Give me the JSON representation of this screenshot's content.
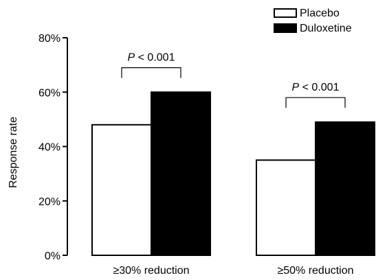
{
  "chart_data": {
    "type": "bar",
    "title": "",
    "xlabel": "",
    "ylabel": "Response rate",
    "categories": [
      "≥30% reduction",
      "≥50% reduction"
    ],
    "series": [
      {
        "name": "Placebo",
        "values": [
          48,
          35
        ],
        "fill": "#ffffff",
        "stroke": "#000000"
      },
      {
        "name": "Duloxetine",
        "values": [
          60,
          49
        ],
        "fill": "#000000",
        "stroke": "#000000"
      }
    ],
    "ylim": [
      0,
      80
    ],
    "yticks": [
      0,
      20,
      40,
      60,
      80
    ],
    "ytick_labels": [
      "0%",
      "20%",
      "40%",
      "60%",
      "80%"
    ],
    "grid": false,
    "legend_position": "top-right",
    "annotations": [
      {
        "category": "≥30% reduction",
        "prefix": "P",
        "text": " < 0.001",
        "bracket_at": 69
      },
      {
        "category": "≥50% reduction",
        "prefix": "P",
        "text": " < 0.001",
        "bracket_at": 58
      }
    ]
  }
}
